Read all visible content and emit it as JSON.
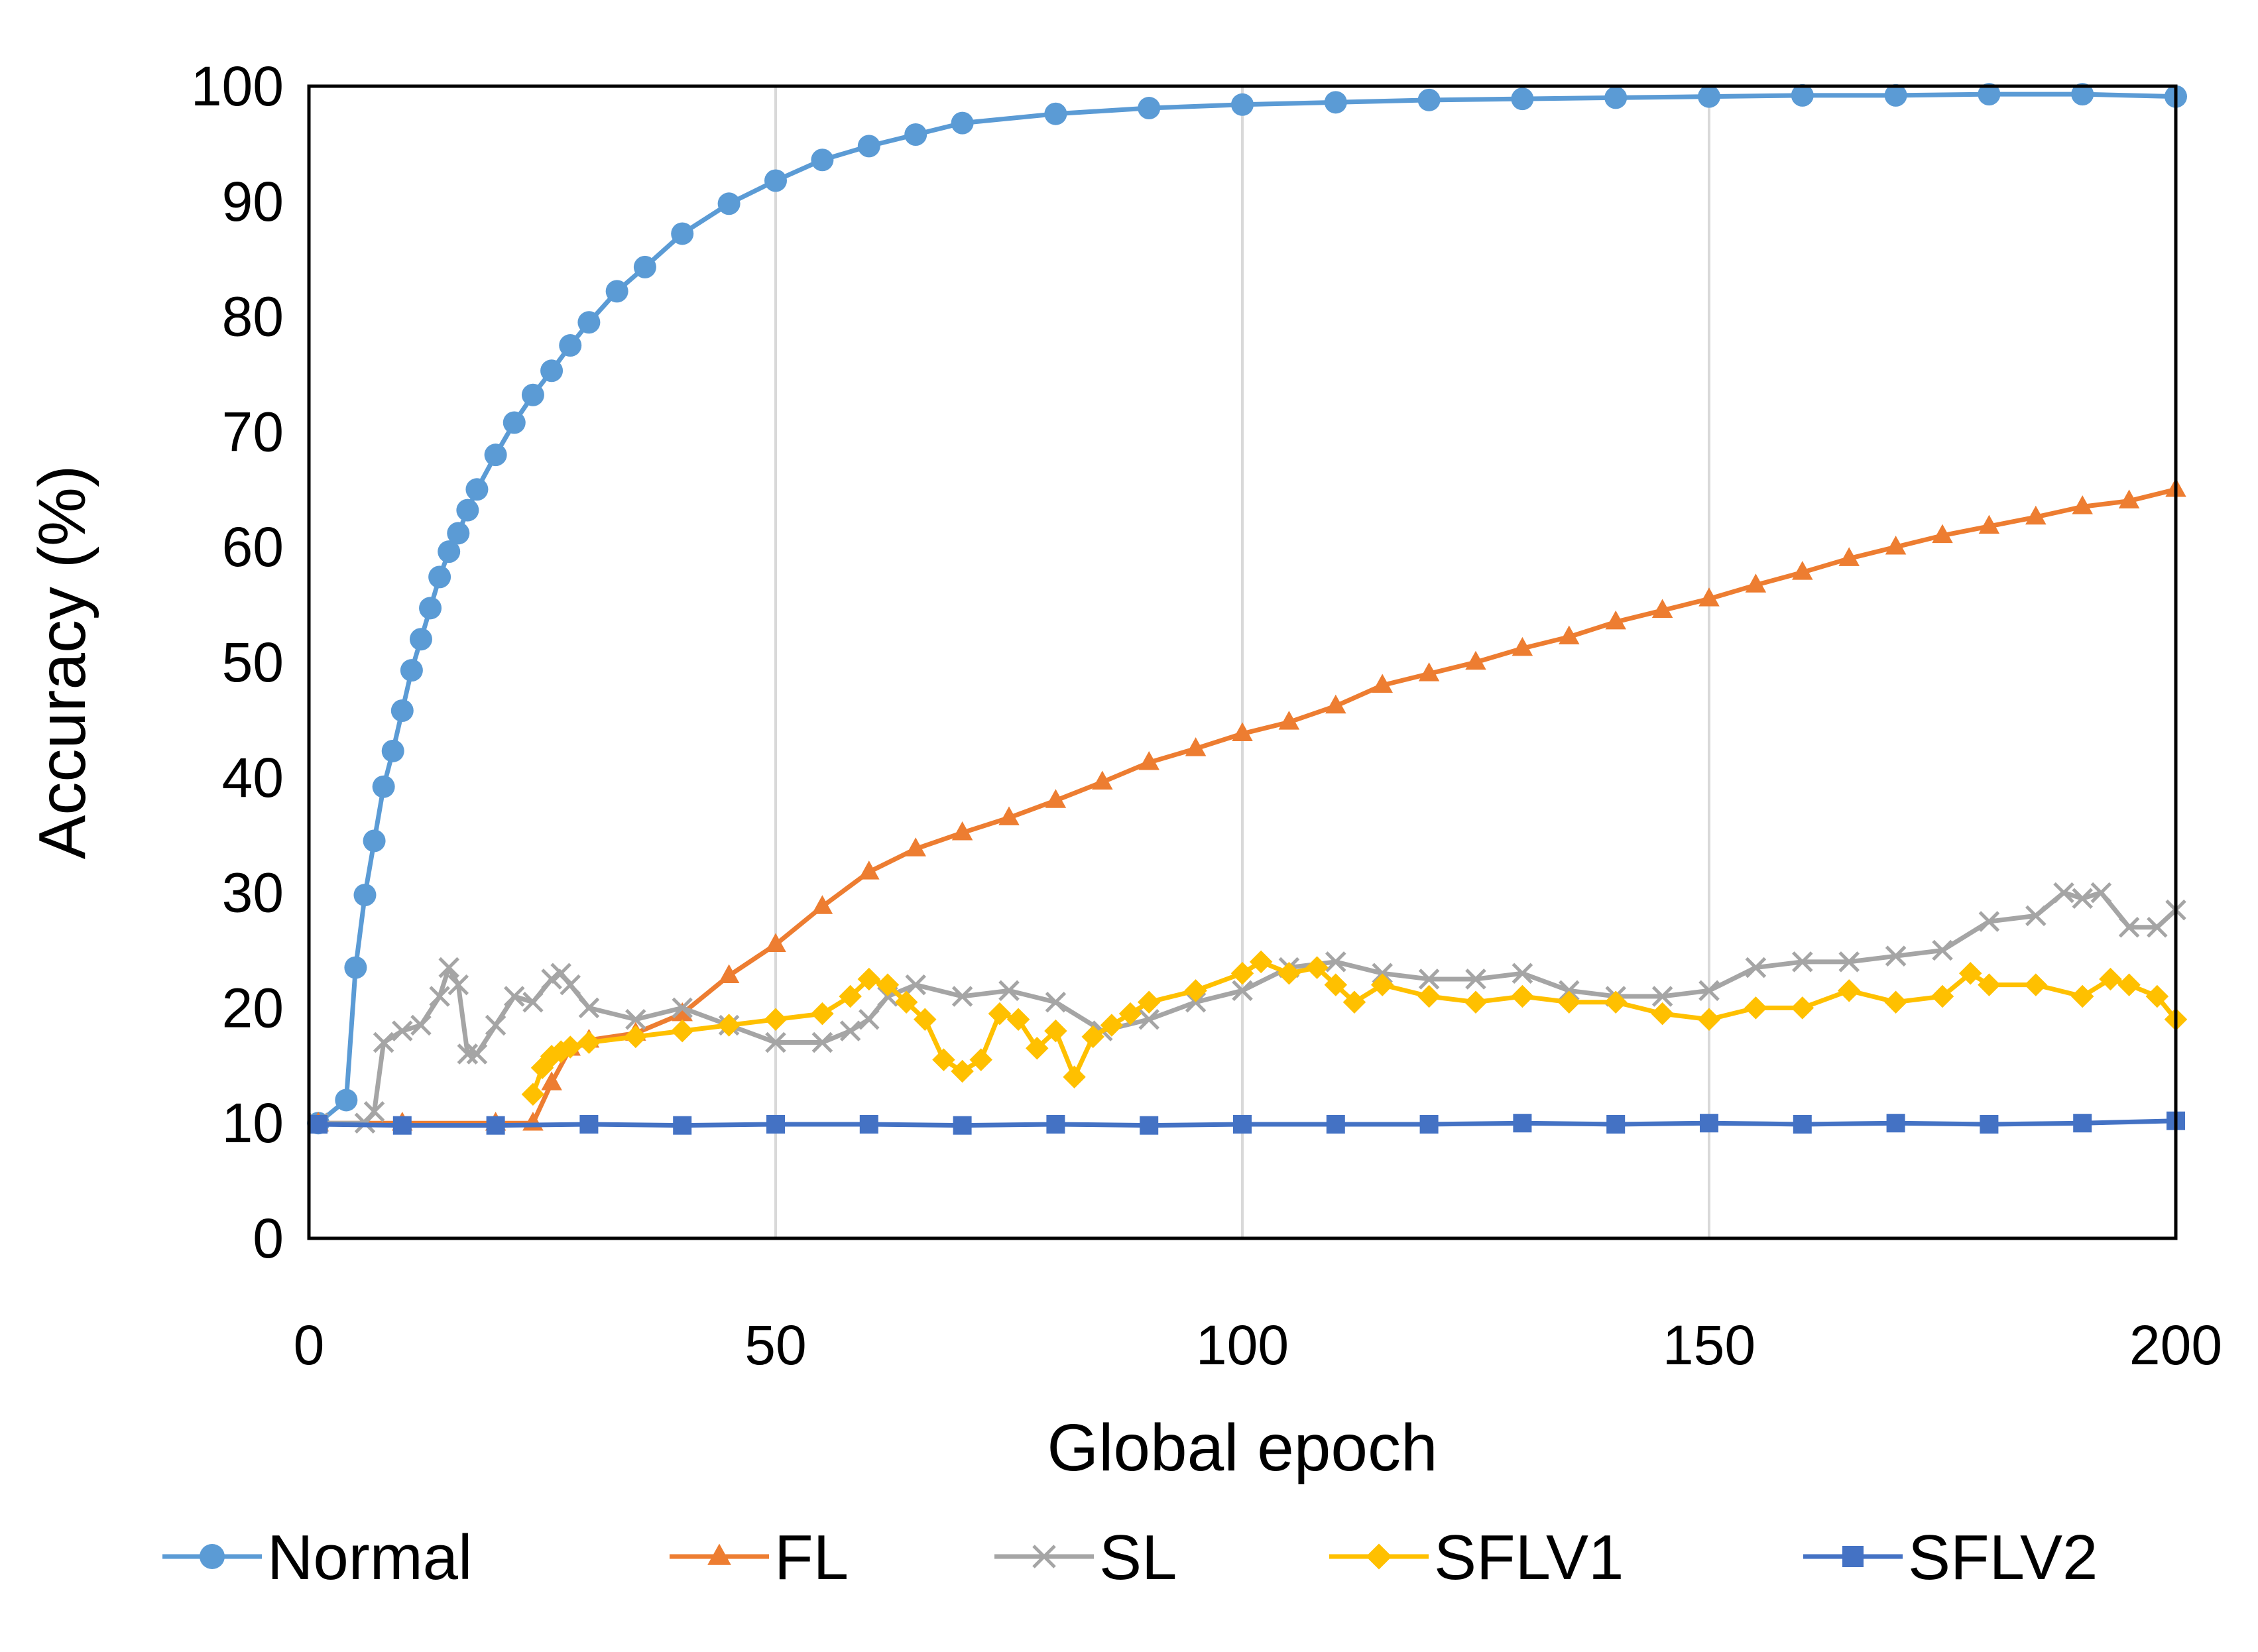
{
  "chart_data": {
    "type": "line",
    "title": "",
    "xlabel": "Global epoch",
    "ylabel": "Accuracy (%)",
    "xlim": [
      0,
      200
    ],
    "ylim": [
      0,
      100
    ],
    "xticks": [
      0,
      50,
      100,
      150,
      200
    ],
    "yticks": [
      0,
      10,
      20,
      30,
      40,
      50,
      60,
      70,
      80,
      90,
      100
    ],
    "grid": "vertical",
    "legend_position": "bottom",
    "series": [
      {
        "name": "Normal",
        "color": "#5B9BD5",
        "marker": "circle",
        "x": [
          1,
          4,
          5,
          6,
          7,
          8,
          9,
          10,
          11,
          12,
          13,
          14,
          15,
          16,
          17,
          18,
          20,
          22,
          24,
          26,
          28,
          30,
          33,
          36,
          40,
          45,
          50,
          55,
          60,
          65,
          70,
          80,
          90,
          100,
          110,
          120,
          130,
          140,
          150,
          160,
          170,
          180,
          190,
          200
        ],
        "y": [
          10,
          12,
          23.5,
          29.8,
          34.5,
          39.2,
          42.3,
          45.8,
          49.3,
          52,
          54.7,
          57.4,
          59.6,
          61.2,
          63.2,
          65,
          68,
          70.8,
          73.2,
          75.3,
          77.5,
          79.5,
          82.2,
          84.3,
          87.2,
          89.8,
          91.8,
          93.6,
          94.8,
          95.8,
          96.8,
          97.6,
          98.1,
          98.4,
          98.6,
          98.8,
          98.9,
          99,
          99.1,
          99.2,
          99.2,
          99.3,
          99.3,
          99.1
        ]
      },
      {
        "name": "FL",
        "color": "#ED7D31",
        "marker": "triangle",
        "x": [
          1,
          10,
          20,
          24,
          26,
          28,
          30,
          35,
          40,
          45,
          50,
          55,
          60,
          65,
          70,
          75,
          80,
          85,
          90,
          95,
          100,
          105,
          110,
          115,
          120,
          125,
          130,
          135,
          140,
          145,
          150,
          155,
          160,
          165,
          170,
          175,
          180,
          185,
          190,
          195,
          200
        ],
        "y": [
          10,
          10,
          10,
          10,
          13.5,
          16.5,
          17.2,
          17.8,
          19.5,
          22.8,
          25.5,
          28.8,
          31.8,
          33.8,
          35.2,
          36.5,
          38,
          39.6,
          41.3,
          42.5,
          43.8,
          44.8,
          46.2,
          48,
          49,
          50,
          51.2,
          52.2,
          53.5,
          54.5,
          55.5,
          56.7,
          57.8,
          59,
          60,
          61,
          61.8,
          62.6,
          63.5,
          64,
          65
        ]
      },
      {
        "name": "SL",
        "color": "#A5A5A5",
        "marker": "x",
        "x": [
          1,
          6,
          7,
          8,
          10,
          12,
          14,
          15,
          16,
          17,
          18,
          20,
          22,
          24,
          26,
          27,
          28,
          30,
          35,
          40,
          45,
          50,
          55,
          58,
          60,
          62,
          65,
          70,
          75,
          80,
          85,
          90,
          95,
          100,
          105,
          110,
          115,
          120,
          125,
          130,
          135,
          140,
          145,
          150,
          155,
          160,
          165,
          170,
          175,
          180,
          185,
          188,
          190,
          192,
          195,
          198,
          200
        ],
        "y": [
          10,
          10,
          11,
          17,
          18,
          18.5,
          21,
          23.5,
          22,
          16,
          16,
          18.5,
          21,
          20.5,
          22.5,
          23,
          22,
          20,
          19,
          20,
          18.5,
          17,
          17,
          18,
          19,
          21,
          22,
          21,
          21.5,
          20.5,
          18,
          19,
          20.5,
          21.5,
          23.5,
          24,
          23,
          22.5,
          22.5,
          23,
          21.5,
          21,
          21,
          21.5,
          23.5,
          24,
          24,
          24.5,
          25,
          27.5,
          28,
          30,
          29.5,
          30,
          27,
          27,
          28.5
        ]
      },
      {
        "name": "SFLV1",
        "color": "#FFC000",
        "marker": "diamond",
        "x": [
          24,
          25,
          26,
          27,
          28,
          30,
          35,
          40,
          45,
          50,
          55,
          58,
          60,
          62,
          64,
          66,
          68,
          70,
          72,
          74,
          76,
          78,
          80,
          82,
          84,
          86,
          88,
          90,
          95,
          100,
          102,
          105,
          108,
          110,
          112,
          115,
          120,
          125,
          130,
          135,
          140,
          145,
          150,
          155,
          160,
          165,
          170,
          175,
          178,
          180,
          185,
          190,
          193,
          195,
          198,
          200
        ],
        "y": [
          12.5,
          14.8,
          15.8,
          16.2,
          16.6,
          17,
          17.5,
          18,
          18.5,
          19,
          19.5,
          21,
          22.5,
          22,
          20.5,
          19,
          15.5,
          14.5,
          15.5,
          19.5,
          19,
          16.5,
          18,
          14,
          17.5,
          18.5,
          19.5,
          20.5,
          21.5,
          23,
          24,
          23,
          23.5,
          22,
          20.5,
          22,
          21,
          20.5,
          21,
          20.5,
          20.5,
          19.5,
          19,
          20,
          20,
          21.5,
          20.5,
          21,
          23,
          22,
          22,
          21,
          22.5,
          22,
          21,
          19
        ]
      },
      {
        "name": "SFLV2",
        "color": "#4472C4",
        "marker": "square",
        "x": [
          1,
          10,
          20,
          30,
          40,
          50,
          60,
          70,
          80,
          90,
          100,
          110,
          120,
          130,
          140,
          150,
          160,
          170,
          180,
          190,
          200
        ],
        "y": [
          9.9,
          9.8,
          9.8,
          9.9,
          9.8,
          9.9,
          9.9,
          9.8,
          9.9,
          9.8,
          9.9,
          9.9,
          9.9,
          10,
          9.9,
          10,
          9.9,
          10,
          9.9,
          10,
          10.2
        ]
      }
    ]
  }
}
